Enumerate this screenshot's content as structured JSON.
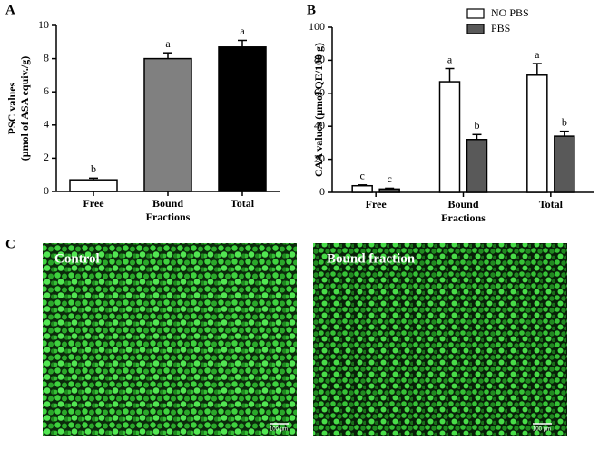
{
  "panel_labels": [
    "A",
    "B",
    "C"
  ],
  "chart_data": [
    {
      "type": "bar",
      "ylabel": [
        "PSC values",
        "(μmol  of ASA equiv./g)"
      ],
      "xlabel": "Fractions",
      "categories": [
        "Free",
        "Bound",
        "Total"
      ],
      "values": [
        0.7,
        8.0,
        8.7
      ],
      "errors": [
        0.1,
        0.35,
        0.4
      ],
      "annotations": [
        "b",
        "a",
        "a"
      ],
      "colors": [
        "#ffffff",
        "#808080",
        "#000000"
      ],
      "ylim": [
        0,
        10
      ],
      "yticks": [
        0,
        2,
        4,
        6,
        8,
        10
      ]
    },
    {
      "type": "bar",
      "ylabel": [
        "CAA values (μmol QE/100 g)"
      ],
      "xlabel": "Fractions",
      "categories": [
        "Free",
        "Bound",
        "Total"
      ],
      "series": [
        {
          "name": "NO PBS",
          "color": "#ffffff",
          "values": [
            4,
            67,
            71
          ],
          "errors": [
            0.5,
            8,
            7
          ],
          "annotations": [
            "c",
            "a",
            "a"
          ]
        },
        {
          "name": "PBS",
          "color": "#595959",
          "values": [
            2,
            32,
            34
          ],
          "errors": [
            0.5,
            3,
            3
          ],
          "annotations": [
            "c",
            "b",
            "b"
          ]
        }
      ],
      "legend": "upper right",
      "ylim": [
        0,
        100
      ],
      "yticks": [
        0,
        20,
        40,
        60,
        80,
        100
      ]
    }
  ],
  "images": [
    {
      "label": "Control",
      "scale_bar": "100 µm"
    },
    {
      "label": "Bound fraction",
      "scale_bar": "100 µm"
    }
  ]
}
